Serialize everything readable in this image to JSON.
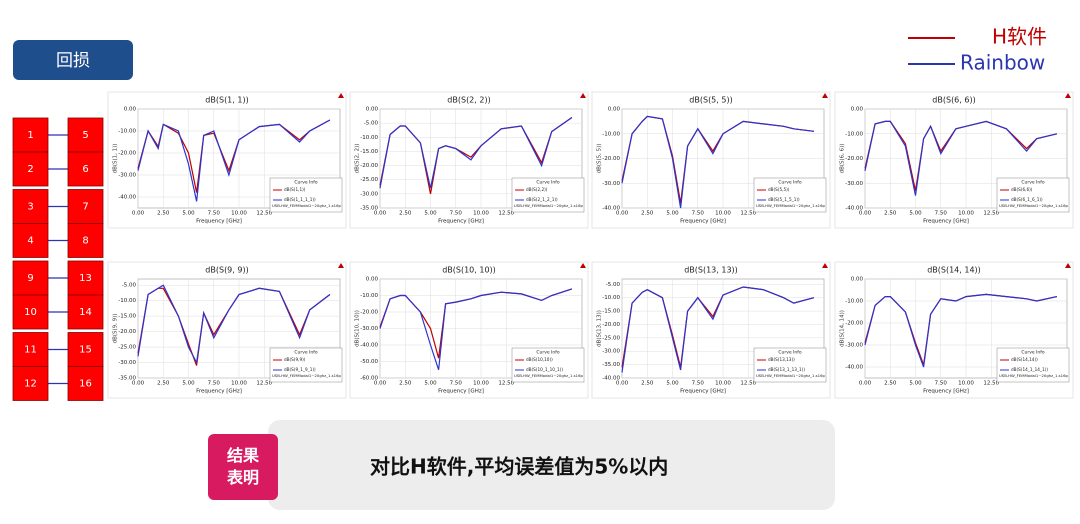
{
  "header": {
    "title": "回损"
  },
  "legend": [
    {
      "name": "H软件",
      "color": "#c00000"
    },
    {
      "name": "Rainbow",
      "color": "#2a35b0"
    }
  ],
  "ports": [
    [
      1,
      5
    ],
    [
      2,
      6
    ],
    [
      3,
      7
    ],
    [
      4,
      8
    ],
    [
      9,
      13
    ],
    [
      10,
      14
    ],
    [
      11,
      15
    ],
    [
      12,
      16
    ]
  ],
  "conclusion": {
    "tag": "结果\n表明",
    "text": "对比H软件,平均误差值为5%以内"
  },
  "chart_data": [
    {
      "type": "line",
      "title": "dB(S(1, 1))",
      "x_label": "Frequency [GHz]",
      "legend_title": "Curve Info",
      "legend_note": "USB-HW_FEMModal1~20ghz_1.s16p",
      "xlim": [
        0,
        20
      ],
      "ylim": [
        -45,
        0
      ],
      "xticks": [
        {
          "value": 0,
          "label": "0.00"
        },
        {
          "value": 2.5,
          "label": "2.50"
        },
        {
          "value": 5,
          "label": "5.00"
        },
        {
          "value": 7.5,
          "label": "7.50"
        },
        {
          "value": 10,
          "label": "10.00"
        },
        {
          "value": 12.5,
          "label": "12.50"
        }
      ],
      "yticks": [
        {
          "value": 0,
          "label": "0.00"
        },
        {
          "value": -10,
          "label": "-10.00"
        },
        {
          "value": -20,
          "label": "-20.00"
        },
        {
          "value": -30,
          "label": "-30.00"
        },
        {
          "value": -40,
          "label": "-40.00"
        }
      ],
      "x": [
        0,
        1,
        2,
        2.5,
        4,
        5,
        5.8,
        6.5,
        7.5,
        9,
        10,
        12,
        14,
        16,
        17,
        19
      ],
      "series": [
        {
          "name": "dB(S(1,1))",
          "color": "#c00000",
          "values": [
            -27,
            -10,
            -17,
            -7,
            -11,
            -20,
            -38,
            -12,
            -11,
            -28,
            -14,
            -8,
            -7,
            -14,
            -10,
            -5
          ]
        },
        {
          "name": "dB(S(1_1_1_1))",
          "color": "#2a35d0",
          "values": [
            -28,
            -10,
            -18,
            -7,
            -10,
            -25,
            -42,
            -12,
            -10,
            -30,
            -14,
            -8,
            -7,
            -15,
            -10,
            -5
          ]
        }
      ]
    },
    {
      "type": "line",
      "title": "dB(S(2, 2))",
      "x_label": "Frequency [GHz]",
      "legend_title": "Curve Info",
      "legend_note": "USB-HW_FEMModal1~20ghz_1.s16p",
      "xlim": [
        0,
        20
      ],
      "ylim": [
        -35,
        0
      ],
      "xticks": [
        {
          "value": 0,
          "label": "0.00"
        },
        {
          "value": 2.5,
          "label": "2.50"
        },
        {
          "value": 5,
          "label": "5.00"
        },
        {
          "value": 7.5,
          "label": "7.50"
        },
        {
          "value": 10,
          "label": "10.00"
        },
        {
          "value": 12.5,
          "label": "12.50"
        }
      ],
      "yticks": [
        {
          "value": 0,
          "label": "0.00"
        },
        {
          "value": -5,
          "label": "-5.00"
        },
        {
          "value": -10,
          "label": "-10.00"
        },
        {
          "value": -15,
          "label": "-15.00"
        },
        {
          "value": -20,
          "label": "-20.00"
        },
        {
          "value": -25,
          "label": "-25.00"
        },
        {
          "value": -30,
          "label": "-30.00"
        },
        {
          "value": -35,
          "label": "-35.00"
        }
      ],
      "x": [
        0,
        1,
        2,
        2.5,
        4,
        5,
        5.8,
        6.5,
        7.5,
        9,
        10,
        12,
        14,
        16,
        17,
        19
      ],
      "series": [
        {
          "name": "dB(S(2,2))",
          "color": "#c00000",
          "values": [
            -27,
            -9,
            -6,
            -6,
            -12,
            -30,
            -14,
            -13,
            -14,
            -17,
            -13,
            -7,
            -6,
            -19,
            -8,
            -3
          ]
        },
        {
          "name": "dB(S(2_1_2_1))",
          "color": "#2a35d0",
          "values": [
            -28,
            -9,
            -6,
            -6,
            -12,
            -28,
            -14,
            -13,
            -14,
            -18,
            -13,
            -7,
            -6,
            -20,
            -8,
            -3
          ]
        }
      ]
    },
    {
      "type": "line",
      "title": "dB(S(5, 5))",
      "x_label": "Frequency [GHz]",
      "legend_title": "Curve Info",
      "legend_note": "USB-HW_FEMModal1~20ghz_1.s16p",
      "xlim": [
        0,
        20
      ],
      "ylim": [
        -40,
        0
      ],
      "xticks": [
        {
          "value": 0,
          "label": "0.00"
        },
        {
          "value": 2.5,
          "label": "2.50"
        },
        {
          "value": 5,
          "label": "5.00"
        },
        {
          "value": 7.5,
          "label": "7.50"
        },
        {
          "value": 10,
          "label": "10.00"
        },
        {
          "value": 12.5,
          "label": "12.50"
        }
      ],
      "yticks": [
        {
          "value": 0,
          "label": "0.00"
        },
        {
          "value": -10,
          "label": "-10.00"
        },
        {
          "value": -20,
          "label": "-20.00"
        },
        {
          "value": -30,
          "label": "-30.00"
        },
        {
          "value": -40,
          "label": "-40.00"
        }
      ],
      "x": [
        0,
        1,
        2,
        2.5,
        4,
        5,
        5.8,
        6.5,
        7.5,
        9,
        10,
        12,
        14,
        16,
        17,
        19
      ],
      "series": [
        {
          "name": "dB(S(5,5))",
          "color": "#c00000",
          "values": [
            -29,
            -10,
            -5,
            -3,
            -4,
            -19,
            -38,
            -15,
            -8,
            -17,
            -10,
            -5,
            -6,
            -7,
            -8,
            -9
          ]
        },
        {
          "name": "dB(S(5_1_5_1))",
          "color": "#2a35d0",
          "values": [
            -30,
            -10,
            -5,
            -3,
            -4,
            -20,
            -40,
            -15,
            -8,
            -18,
            -10,
            -5,
            -6,
            -7,
            -8,
            -9
          ]
        }
      ]
    },
    {
      "type": "line",
      "title": "dB(S(6, 6))",
      "x_label": "Frequency [GHz]",
      "legend_title": "Curve Info",
      "legend_note": "USB-HW_FEMModal1~20ghz_1.s16p",
      "xlim": [
        0,
        20
      ],
      "ylim": [
        -40,
        0
      ],
      "xticks": [
        {
          "value": 0,
          "label": "0.00"
        },
        {
          "value": 2.5,
          "label": "2.50"
        },
        {
          "value": 5,
          "label": "5.00"
        },
        {
          "value": 7.5,
          "label": "7.50"
        },
        {
          "value": 10,
          "label": "10.00"
        },
        {
          "value": 12.5,
          "label": "12.50"
        }
      ],
      "yticks": [
        {
          "value": 0,
          "label": "0.00"
        },
        {
          "value": -10,
          "label": "-10.00"
        },
        {
          "value": -20,
          "label": "-20.00"
        },
        {
          "value": -30,
          "label": "-30.00"
        },
        {
          "value": -40,
          "label": "-40.00"
        }
      ],
      "x": [
        0,
        1,
        2,
        2.5,
        4,
        5,
        5.8,
        6.5,
        7.5,
        9,
        10,
        12,
        14,
        16,
        17,
        19
      ],
      "series": [
        {
          "name": "dB(S(6,6))",
          "color": "#c00000",
          "values": [
            -24,
            -6,
            -5,
            -5,
            -14,
            -33,
            -12,
            -7,
            -17,
            -8,
            -7,
            -5,
            -8,
            -16,
            -12,
            -10
          ]
        },
        {
          "name": "dB(S(6_1_6_1))",
          "color": "#2a35d0",
          "values": [
            -25,
            -6,
            -5,
            -5,
            -15,
            -35,
            -12,
            -7,
            -18,
            -8,
            -7,
            -5,
            -8,
            -17,
            -12,
            -10
          ]
        }
      ]
    },
    {
      "type": "line",
      "title": "dB(S(9, 9))",
      "x_label": "Frequency [GHz]",
      "legend_title": "Curve Info",
      "legend_note": "USB-HW_FEMModal1~20ghz_1.s16p",
      "xlim": [
        0,
        20
      ],
      "ylim": [
        -35,
        -3
      ],
      "xticks": [
        {
          "value": 0,
          "label": "0.00"
        },
        {
          "value": 2.5,
          "label": "2.50"
        },
        {
          "value": 5,
          "label": "5.00"
        },
        {
          "value": 7.5,
          "label": "7.50"
        },
        {
          "value": 10,
          "label": "10.00"
        },
        {
          "value": 12.5,
          "label": "12.50"
        }
      ],
      "yticks": [
        {
          "value": -5,
          "label": "-5.00"
        },
        {
          "value": -10,
          "label": "-10.00"
        },
        {
          "value": -15,
          "label": "-15.00"
        },
        {
          "value": -20,
          "label": "-20.00"
        },
        {
          "value": -25,
          "label": "-25.00"
        },
        {
          "value": -30,
          "label": "-30.00"
        },
        {
          "value": -35,
          "label": "-35.00"
        }
      ],
      "x": [
        0,
        1,
        2,
        2.5,
        4,
        5,
        5.8,
        6.5,
        7.5,
        9,
        10,
        12,
        14,
        16,
        17,
        19
      ],
      "series": [
        {
          "name": "dB(S(9,9))",
          "color": "#c00000",
          "values": [
            -27,
            -8,
            -6,
            -6,
            -15,
            -24,
            -31,
            -14,
            -21,
            -13,
            -8,
            -6,
            -7,
            -21,
            -13,
            -8
          ]
        },
        {
          "name": "dB(S(9_1_9_1))",
          "color": "#2a35d0",
          "values": [
            -28,
            -8,
            -6,
            -5,
            -15,
            -25,
            -30,
            -14,
            -22,
            -13,
            -8,
            -6,
            -7,
            -22,
            -13,
            -8
          ]
        }
      ]
    },
    {
      "type": "line",
      "title": "dB(S(10, 10))",
      "x_label": "Frequency [GHz]",
      "legend_title": "Curve Info",
      "legend_note": "USB-HW_FEMModal1~20ghz_1.s16p",
      "xlim": [
        0,
        20
      ],
      "ylim": [
        -60,
        0
      ],
      "xticks": [
        {
          "value": 0,
          "label": "0.00"
        },
        {
          "value": 2.5,
          "label": "2.50"
        },
        {
          "value": 5,
          "label": "5.00"
        },
        {
          "value": 7.5,
          "label": "7.50"
        },
        {
          "value": 10,
          "label": "10.00"
        },
        {
          "value": 12.5,
          "label": "12.50"
        }
      ],
      "yticks": [
        {
          "value": 0,
          "label": "0.00"
        },
        {
          "value": -10,
          "label": "-10.00"
        },
        {
          "value": -20,
          "label": "-20.00"
        },
        {
          "value": -30,
          "label": "-30.00"
        },
        {
          "value": -40,
          "label": "-40.00"
        },
        {
          "value": -50,
          "label": "-50.00"
        },
        {
          "value": -60,
          "label": "-60.00"
        }
      ],
      "x": [
        0,
        1,
        2,
        2.5,
        4,
        5,
        5.8,
        6.5,
        7.5,
        9,
        10,
        12,
        14,
        16,
        17,
        19
      ],
      "series": [
        {
          "name": "dB(S(10,10))",
          "color": "#c00000",
          "values": [
            -29,
            -12,
            -10,
            -10,
            -20,
            -30,
            -48,
            -15,
            -14,
            -12,
            -10,
            -8,
            -9,
            -13,
            -10,
            -6
          ]
        },
        {
          "name": "dB(S(10_1_10_1))",
          "color": "#2a35d0",
          "values": [
            -30,
            -12,
            -10,
            -10,
            -20,
            -40,
            -55,
            -15,
            -14,
            -12,
            -10,
            -8,
            -9,
            -13,
            -10,
            -6
          ]
        }
      ]
    },
    {
      "type": "line",
      "title": "dB(S(13, 13))",
      "x_label": "Frequency [GHz]",
      "legend_title": "Curve Info",
      "legend_note": "USB-HW_FEMModal1~20ghz_1.s16p",
      "xlim": [
        0,
        20
      ],
      "ylim": [
        -40,
        -3
      ],
      "xticks": [
        {
          "value": 0,
          "label": "0.00"
        },
        {
          "value": 2.5,
          "label": "2.50"
        },
        {
          "value": 5,
          "label": "5.00"
        },
        {
          "value": 7.5,
          "label": "7.50"
        },
        {
          "value": 10,
          "label": "10.00"
        },
        {
          "value": 12.5,
          "label": "12.50"
        }
      ],
      "yticks": [
        {
          "value": -5,
          "label": "-5.00"
        },
        {
          "value": -10,
          "label": "-10.00"
        },
        {
          "value": -15,
          "label": "-15.00"
        },
        {
          "value": -20,
          "label": "-20.00"
        },
        {
          "value": -25,
          "label": "-25.00"
        },
        {
          "value": -30,
          "label": "-30.00"
        },
        {
          "value": -35,
          "label": "-35.00"
        },
        {
          "value": -40,
          "label": "-40.00"
        }
      ],
      "x": [
        0,
        1,
        2,
        2.5,
        4,
        5,
        5.8,
        6.5,
        7.5,
        9,
        10,
        12,
        14,
        16,
        17,
        19
      ],
      "series": [
        {
          "name": "dB(S(13,13))",
          "color": "#c00000",
          "values": [
            -36,
            -12,
            -8,
            -7,
            -10,
            -24,
            -36,
            -15,
            -10,
            -17,
            -9,
            -6,
            -7,
            -10,
            -12,
            -10
          ]
        },
        {
          "name": "dB(S(13_1_13_1))",
          "color": "#2a35d0",
          "values": [
            -38,
            -12,
            -8,
            -7,
            -10,
            -25,
            -37,
            -15,
            -10,
            -18,
            -9,
            -6,
            -7,
            -10,
            -12,
            -10
          ]
        }
      ]
    },
    {
      "type": "line",
      "title": "dB(S(14, 14))",
      "x_label": "Frequency [GHz]",
      "legend_title": "Curve Info",
      "legend_note": "USB-HW_FEMModal1~20ghz_1.s16p",
      "xlim": [
        0,
        20
      ],
      "ylim": [
        -45,
        0
      ],
      "xticks": [
        {
          "value": 0,
          "label": "0.00"
        },
        {
          "value": 2.5,
          "label": "2.50"
        },
        {
          "value": 5,
          "label": "5.00"
        },
        {
          "value": 7.5,
          "label": "7.50"
        },
        {
          "value": 10,
          "label": "10.00"
        },
        {
          "value": 12.5,
          "label": "12.50"
        }
      ],
      "yticks": [
        {
          "value": 0,
          "label": "0.00"
        },
        {
          "value": -10,
          "label": "-10.00"
        },
        {
          "value": -20,
          "label": "-20.00"
        },
        {
          "value": -30,
          "label": "-30.00"
        },
        {
          "value": -40,
          "label": "-40.00"
        }
      ],
      "x": [
        0,
        1,
        2,
        2.5,
        4,
        5,
        5.8,
        6.5,
        7.5,
        9,
        10,
        12,
        14,
        16,
        17,
        19
      ],
      "series": [
        {
          "name": "dB(S(14,14))",
          "color": "#c00000",
          "values": [
            -29,
            -12,
            -8,
            -8,
            -15,
            -29,
            -39,
            -16,
            -9,
            -10,
            -8,
            -7,
            -8,
            -9,
            -10,
            -8
          ]
        },
        {
          "name": "dB(S(14_1_14_1))",
          "color": "#2a35d0",
          "values": [
            -30,
            -12,
            -8,
            -8,
            -15,
            -30,
            -40,
            -16,
            -9,
            -10,
            -8,
            -7,
            -8,
            -9,
            -10,
            -8
          ]
        }
      ]
    }
  ]
}
